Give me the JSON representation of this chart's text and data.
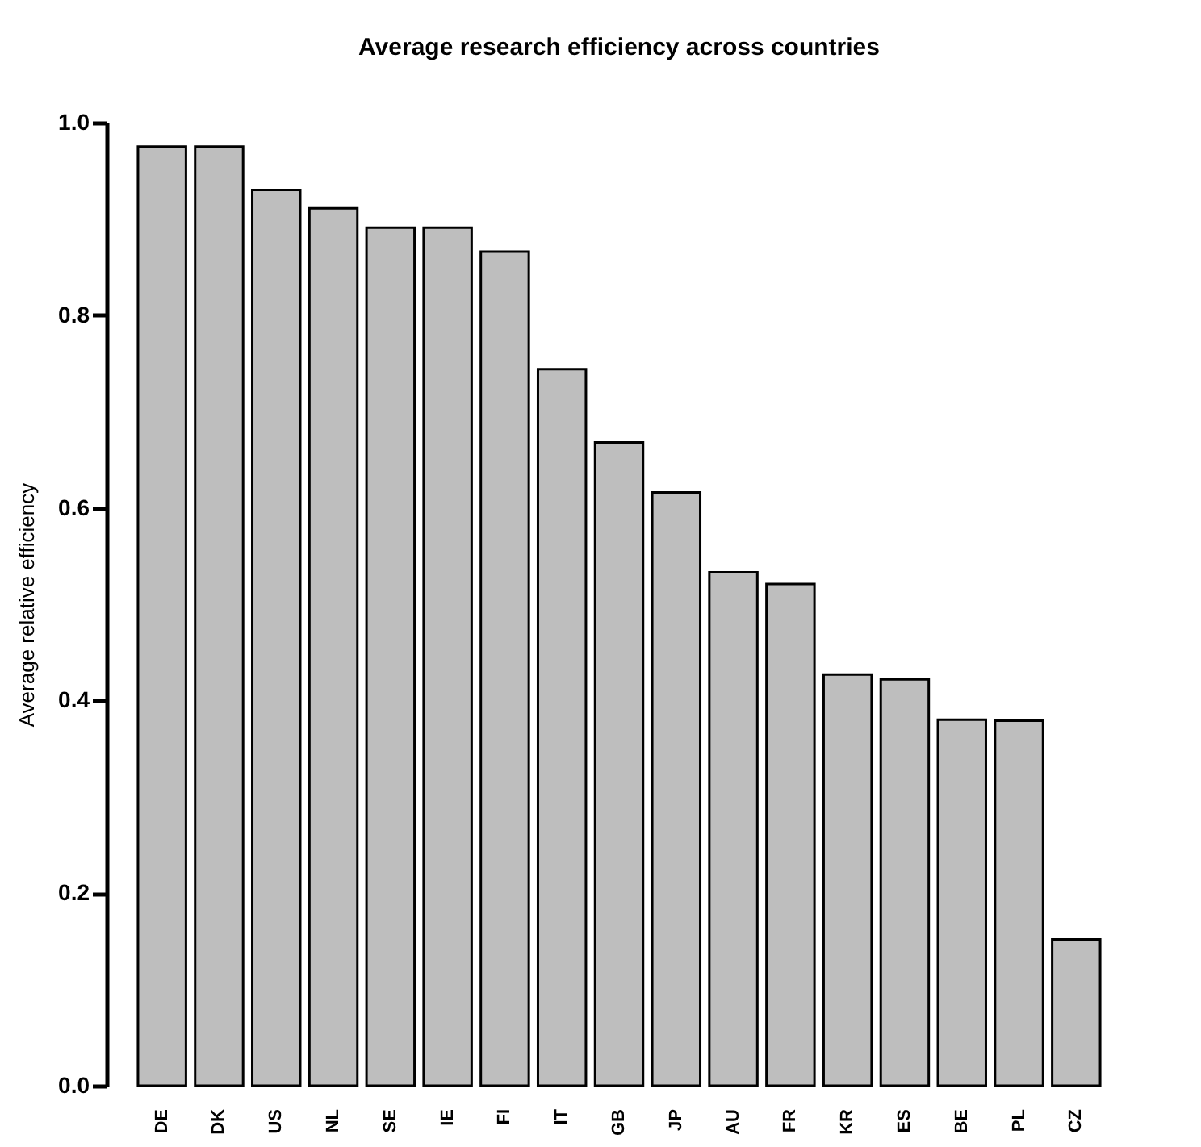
{
  "chart_data": {
    "type": "bar",
    "title": "Average research efficiency across countries",
    "ylabel": "Average relative efficiency",
    "categories": [
      "DE",
      "DK",
      "US",
      "NL",
      "SE",
      "IE",
      "FI",
      "IT",
      "GB",
      "JP",
      "AU",
      "FR",
      "KR",
      "ES",
      "BE",
      "PL",
      "CZ"
    ],
    "values": [
      0.975,
      0.975,
      0.93,
      0.911,
      0.891,
      0.891,
      0.866,
      0.744,
      0.668,
      0.616,
      0.533,
      0.521,
      0.427,
      0.422,
      0.38,
      0.379,
      0.152
    ],
    "color": "#bebebe",
    "ylim": [
      0,
      1
    ],
    "yticks": [
      {
        "value": 0,
        "label": "0.0"
      },
      {
        "value": 0.2,
        "label": "0.2"
      },
      {
        "value": 0.4,
        "label": "0.4"
      },
      {
        "value": 0.6,
        "label": "0.6"
      },
      {
        "value": 0.8,
        "label": "0.8"
      },
      {
        "value": 1,
        "label": "1.0"
      }
    ],
    "grid": false
  }
}
